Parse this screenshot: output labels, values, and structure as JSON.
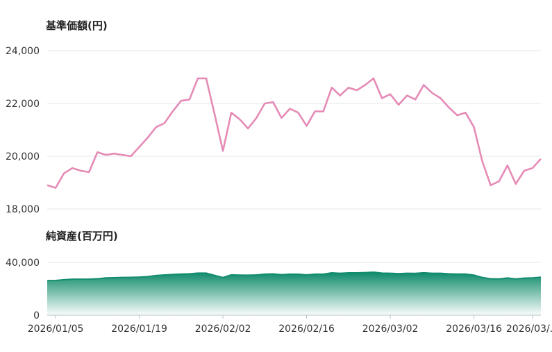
{
  "chart_data": [
    {
      "type": "line",
      "title": "基準価額(円)",
      "ylim": [
        18000,
        24000
      ],
      "y_ticks": [
        "24,000",
        "22,000",
        "20,000",
        "18,000"
      ],
      "y_tick_values": [
        24000,
        22000,
        20000,
        18000
      ],
      "color": "#e58bb6",
      "grid": true,
      "series": [
        {
          "values": [
            18900,
            18800,
            19350,
            19550,
            19450,
            19400,
            20150,
            20050,
            20100,
            20050,
            20000,
            20350,
            20700,
            21100,
            21250,
            21700,
            22100,
            22150,
            22950,
            22950,
            21600,
            20200,
            21650,
            21400,
            21050,
            21450,
            22000,
            22050,
            21450,
            21800,
            21650,
            21150,
            21700,
            21700,
            22600,
            22300,
            22600,
            22500,
            22700,
            22950,
            22200,
            22350,
            21950,
            22300,
            22150,
            22700,
            22400,
            22200,
            21850,
            21550,
            21650,
            21100,
            19800,
            18900,
            19050,
            19650,
            18950,
            19450,
            19550,
            19900
          ]
        }
      ]
    },
    {
      "type": "area",
      "title": "純資産(百万円)",
      "ylim": [
        0,
        40000
      ],
      "y_ticks": [
        "40,000",
        "0"
      ],
      "y_tick_values": [
        40000,
        0
      ],
      "color": "#128c6e",
      "grid": true,
      "x_tick_labels": [
        "2026/01/05",
        "2026/01/19",
        "2026/02/02",
        "2026/02/16",
        "2026/03/02",
        "2026/03/16",
        "2026/03/..."
      ],
      "x_tick_indices": [
        1,
        11,
        21,
        31,
        41,
        51,
        58
      ],
      "series": [
        {
          "values": [
            26200,
            26300,
            26900,
            27300,
            27300,
            27300,
            27600,
            28300,
            28400,
            28600,
            28700,
            28900,
            29300,
            30100,
            30500,
            30900,
            31200,
            31400,
            31900,
            31900,
            30200,
            28600,
            30600,
            30400,
            30300,
            30500,
            31100,
            31300,
            30700,
            31100,
            31100,
            30600,
            31100,
            31100,
            32100,
            31800,
            32100,
            32100,
            32300,
            32600,
            31900,
            31800,
            31500,
            31800,
            31700,
            32200,
            31800,
            31800,
            31400,
            31200,
            31200,
            30400,
            28600,
            27600,
            27500,
            28200,
            27500,
            28100,
            28300,
            28800
          ]
        }
      ]
    }
  ]
}
